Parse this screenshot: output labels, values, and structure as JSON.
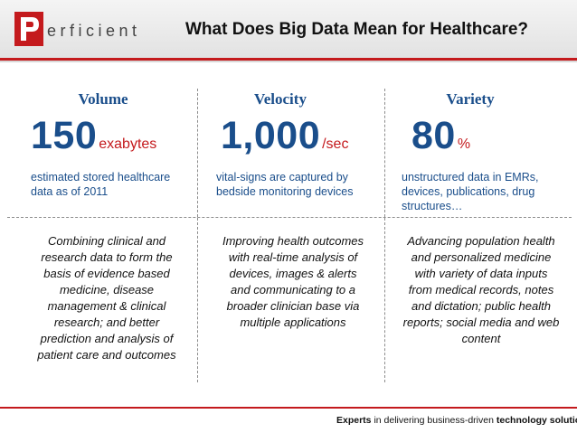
{
  "header": {
    "logo_text": "erficient",
    "title": "What Does Big Data Mean for Healthcare?"
  },
  "columns": [
    {
      "title": "Volume",
      "stat": "150",
      "unit": "exabytes",
      "description_lines": [
        "estimated stored healthcare",
        "data as of 2011"
      ],
      "body_lines": [
        "Combining clinical and",
        "research data to form the",
        "basis of evidence based",
        "medicine, disease",
        "management & clinical",
        "research; and better",
        "prediction and analysis of",
        "patient care and outcomes"
      ]
    },
    {
      "title": "Velocity",
      "stat": "1,000",
      "unit": "/sec",
      "description_lines": [
        "vital-signs are  captured by",
        "bedside monitoring devices"
      ],
      "body_lines": [
        "Improving health outcomes",
        "with real-time analysis of",
        "devices, images & alerts",
        "and communicating to a",
        "broader clinician base via",
        "multiple applications"
      ]
    },
    {
      "title": "Variety",
      "stat": "80",
      "unit": "%",
      "description_lines": [
        "unstructured data in EMRs,",
        "devices, publications, drug",
        "structures…"
      ],
      "body_lines": [
        "Advancing population health",
        "and personalized medicine",
        "with variety of data inputs",
        "from medical records, notes",
        "and dictation; public health",
        "reports; social media and web",
        "content"
      ]
    }
  ],
  "footer": {
    "tagline_bold_1": "Experts",
    "tagline_mid": " in delivering business-driven ",
    "tagline_bold_2": "technology solutions"
  },
  "colors": {
    "accent_red": "#c41a1d",
    "heading_blue": "#1a4e8b"
  }
}
